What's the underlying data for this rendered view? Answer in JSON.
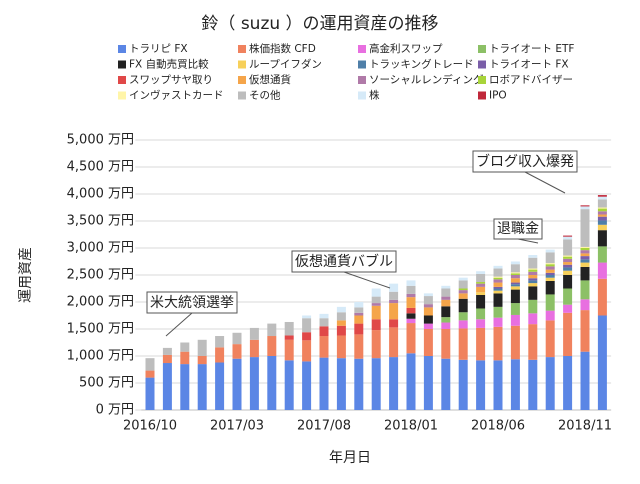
{
  "chart_data": {
    "type": "stacked-bar",
    "title": "鈴（ suzu ）の運用資産の推移",
    "x_label": "年月日",
    "y_label": "運用資産",
    "categories": [
      "2016/10",
      null,
      null,
      null,
      null,
      "2017/03",
      null,
      null,
      null,
      null,
      "2017/08",
      null,
      null,
      null,
      null,
      "2018/01",
      null,
      null,
      null,
      null,
      "2018/06",
      null,
      null,
      null,
      null,
      "2018/11",
      null
    ],
    "ylim": [
      0,
      5000
    ],
    "yticks": [
      {
        "value": 0,
        "label": "0 万円"
      },
      {
        "value": 500,
        "label": "500 万円"
      },
      {
        "value": 1000,
        "label": "1,000 万円"
      },
      {
        "value": 1500,
        "label": "1,500 万円"
      },
      {
        "value": 2000,
        "label": "2,000 万円"
      },
      {
        "value": 2500,
        "label": "2,500 万円"
      },
      {
        "value": 3000,
        "label": "3,000 万円"
      },
      {
        "value": 3500,
        "label": "3,500 万円"
      },
      {
        "value": 4000,
        "label": "4,000 万円"
      },
      {
        "value": 4500,
        "label": "4,500 万円"
      },
      {
        "value": 5000,
        "label": "5,000 万円"
      }
    ],
    "grid": true,
    "series": [
      {
        "name": "トラリピ FX",
        "color": "#5b86e5",
        "values": [
          600,
          870,
          850,
          850,
          880,
          950,
          980,
          1000,
          920,
          900,
          970,
          960,
          950,
          960,
          980,
          1050,
          1000,
          950,
          930,
          920,
          920,
          940,
          930,
          980,
          1000,
          1080,
          1750
        ]
      },
      {
        "name": "株価指数 CFD",
        "color": "#f0825e",
        "values": [
          130,
          150,
          230,
          150,
          280,
          270,
          320,
          370,
          380,
          390,
          400,
          420,
          450,
          520,
          550,
          560,
          500,
          550,
          580,
          600,
          620,
          620,
          660,
          680,
          800,
          770,
          680
        ]
      },
      {
        "name": "高金利スワップ",
        "color": "#e86fe0",
        "values": [
          0,
          0,
          0,
          0,
          0,
          0,
          0,
          0,
          0,
          0,
          0,
          0,
          0,
          0,
          0,
          80,
          100,
          120,
          150,
          160,
          170,
          200,
          200,
          180,
          150,
          200,
          300
        ]
      },
      {
        "name": "トライオート ETF",
        "color": "#8cc066",
        "values": [
          0,
          0,
          0,
          0,
          0,
          0,
          0,
          0,
          0,
          0,
          0,
          0,
          0,
          0,
          0,
          0,
          0,
          100,
          150,
          200,
          200,
          220,
          250,
          300,
          300,
          350,
          300
        ]
      },
      {
        "name": "FX 自動売買比較",
        "color": "#222222",
        "values": [
          0,
          0,
          0,
          0,
          0,
          0,
          0,
          0,
          0,
          0,
          0,
          0,
          0,
          0,
          0,
          100,
          150,
          200,
          250,
          250,
          250,
          250,
          250,
          250,
          250,
          250,
          300
        ]
      },
      {
        "name": "ループイフダン",
        "color": "#f7d05a",
        "values": [
          0,
          0,
          0,
          0,
          0,
          0,
          0,
          0,
          0,
          0,
          0,
          0,
          0,
          0,
          0,
          0,
          0,
          0,
          0,
          50,
          50,
          60,
          60,
          60,
          80,
          80,
          100
        ]
      },
      {
        "name": "トラッキングトレード",
        "color": "#4f7fa8",
        "values": [
          0,
          0,
          0,
          0,
          0,
          0,
          0,
          0,
          0,
          0,
          0,
          0,
          0,
          0,
          0,
          0,
          0,
          0,
          0,
          0,
          40,
          40,
          50,
          50,
          60,
          60,
          80
        ]
      },
      {
        "name": "トライオート FX",
        "color": "#7a5ea8",
        "values": [
          0,
          0,
          0,
          0,
          0,
          0,
          0,
          0,
          0,
          0,
          0,
          0,
          0,
          0,
          0,
          0,
          0,
          0,
          0,
          0,
          30,
          30,
          40,
          40,
          50,
          60,
          70
        ]
      },
      {
        "name": "スワップサヤ取り",
        "color": "#e04848",
        "values": [
          0,
          0,
          0,
          0,
          0,
          0,
          0,
          0,
          80,
          150,
          180,
          180,
          200,
          200,
          150,
          100,
          0,
          0,
          0,
          0,
          0,
          0,
          0,
          0,
          0,
          0,
          0
        ]
      },
      {
        "name": "仮想通貨",
        "color": "#f5a54a",
        "values": [
          0,
          0,
          0,
          0,
          0,
          0,
          0,
          0,
          0,
          0,
          0,
          100,
          150,
          250,
          300,
          200,
          150,
          120,
          100,
          100,
          80,
          80,
          60,
          60,
          50,
          50,
          40
        ]
      },
      {
        "name": "ソーシャルレンディング",
        "color": "#b07aa8",
        "values": [
          0,
          0,
          0,
          0,
          0,
          0,
          0,
          0,
          0,
          0,
          0,
          0,
          50,
          50,
          60,
          60,
          60,
          60,
          60,
          60,
          60,
          60,
          60,
          60,
          60,
          60,
          60
        ]
      },
      {
        "name": "ロボアドバイザー",
        "color": "#a8d43a",
        "values": [
          0,
          0,
          0,
          0,
          0,
          0,
          0,
          0,
          0,
          0,
          0,
          0,
          0,
          0,
          0,
          0,
          0,
          0,
          30,
          30,
          30,
          30,
          40,
          40,
          40,
          40,
          50
        ]
      },
      {
        "name": "インヴァストカード",
        "color": "#fff5a8",
        "values": [
          0,
          0,
          0,
          0,
          0,
          0,
          0,
          0,
          0,
          0,
          0,
          0,
          0,
          0,
          0,
          0,
          0,
          0,
          0,
          0,
          20,
          20,
          20,
          20,
          20,
          20,
          20
        ]
      },
      {
        "name": "その他",
        "color": "#bdbdbd",
        "values": [
          230,
          130,
          170,
          300,
          210,
          210,
          220,
          230,
          250,
          260,
          150,
          150,
          100,
          120,
          150,
          150,
          150,
          150,
          150,
          150,
          150,
          150,
          200,
          200,
          300,
          700,
          150
        ]
      },
      {
        "name": "株",
        "color": "#d6eaf8",
        "values": [
          0,
          0,
          0,
          0,
          0,
          0,
          0,
          0,
          0,
          50,
          80,
          100,
          100,
          150,
          150,
          100,
          50,
          50,
          50,
          50,
          50,
          50,
          50,
          50,
          50,
          50,
          50
        ]
      },
      {
        "name": "IPO",
        "color": "#c0283a",
        "values": [
          0,
          0,
          0,
          0,
          0,
          0,
          0,
          0,
          0,
          0,
          0,
          0,
          0,
          0,
          0,
          0,
          0,
          0,
          0,
          0,
          0,
          0,
          0,
          0,
          20,
          20,
          30
        ]
      }
    ],
    "annotations": [
      "米大統領選挙",
      "仮想通貨バブル",
      "退職金",
      "ブログ収入爆発"
    ]
  }
}
